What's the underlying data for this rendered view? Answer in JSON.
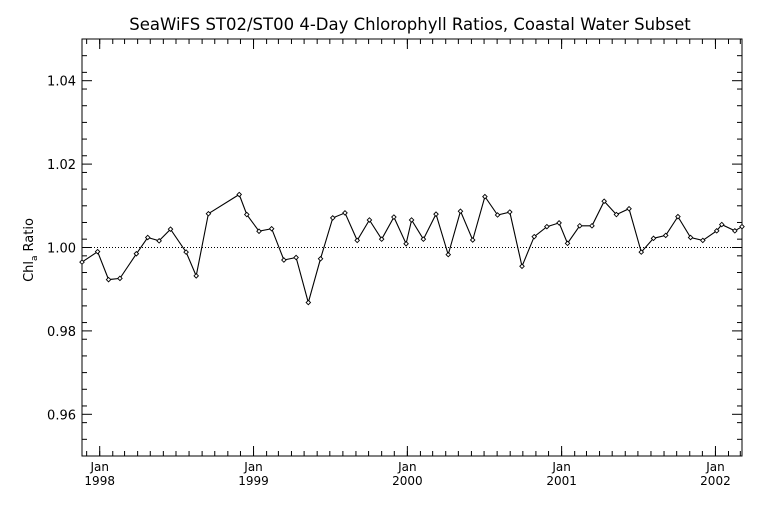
{
  "chart_data": {
    "type": "line",
    "title": "SeaWiFS ST02/ST00 4-Day Chlorophyll Ratios, Coastal Water Subset",
    "ylabel": "Chl",
    "ylabel_sub": "a",
    "ylabel_suffix": "Ratio",
    "xlabel": "",
    "ylim": [
      0.95,
      1.05
    ],
    "xlim": [
      "1997-11-20",
      "2002-03-05"
    ],
    "yticks": [
      0.96,
      0.98,
      1.0,
      1.02,
      1.04
    ],
    "ytick_labels": [
      "0.96",
      "0.98",
      "1.00",
      "1.02",
      "1.04"
    ],
    "xticks": [
      {
        "date": "1998-01-01",
        "month": "Jan",
        "year": "1998"
      },
      {
        "date": "1999-01-01",
        "month": "Jan",
        "year": "1999"
      },
      {
        "date": "2000-01-01",
        "month": "Jan",
        "year": "2000"
      },
      {
        "date": "2001-01-01",
        "month": "Jan",
        "year": "2001"
      },
      {
        "date": "2002-01-01",
        "month": "Jan",
        "year": "2002"
      }
    ],
    "reference_line": 1.0,
    "colors": {
      "line": "#000000",
      "axis": "#000000",
      "reference": "#000000"
    },
    "grid": false,
    "x": [
      "1997-11-20",
      "1997-12-27",
      "1998-01-22",
      "1998-02-18",
      "1998-03-29",
      "1998-04-25",
      "1998-05-22",
      "1998-06-18",
      "1998-07-25",
      "1998-08-18",
      "1998-09-16",
      "1998-11-28",
      "1998-12-16",
      "1999-01-14",
      "1999-02-13",
      "1999-03-14",
      "1999-04-12",
      "1999-05-11",
      "1999-06-09",
      "1999-07-08",
      "1999-08-06",
      "1999-09-04",
      "1999-10-03",
      "1999-11-01",
      "1999-11-30",
      "1999-12-29",
      "2000-01-11",
      "2000-02-08",
      "2000-03-09",
      "2000-04-07",
      "2000-05-06",
      "2000-06-04",
      "2000-07-03",
      "2000-08-02",
      "2000-08-31",
      "2000-09-29",
      "2000-10-28",
      "2000-11-27",
      "2000-12-26",
      "2001-01-15",
      "2001-02-13",
      "2001-03-14",
      "2001-04-12",
      "2001-05-11",
      "2001-06-10",
      "2001-07-09",
      "2001-08-07",
      "2001-09-05",
      "2001-10-04",
      "2001-11-03",
      "2001-12-02",
      "2002-01-04",
      "2002-01-16",
      "2002-02-16",
      "2002-03-05"
    ],
    "series": [
      {
        "values": [
          0.9965,
          0.999,
          0.9923,
          0.9926,
          0.9985,
          1.0024,
          1.0016,
          1.0044,
          0.9989,
          0.9932,
          1.0081,
          1.0127,
          1.0079,
          1.0039,
          1.0045,
          0.997,
          0.9976,
          0.9868,
          0.9973,
          1.0071,
          1.0083,
          1.0017,
          1.0066,
          1.002,
          1.0073,
          1.0009,
          1.0066,
          1.002,
          1.008,
          0.9983,
          1.0087,
          1.0018,
          1.0122,
          1.0078,
          1.0085,
          0.9955,
          1.0026,
          1.005,
          1.0059,
          1.001,
          1.0052,
          1.0052,
          1.0111,
          1.0079,
          1.0093,
          0.9989,
          1.0022,
          1.0029,
          1.0074,
          1.0024,
          1.0017,
          1.004,
          1.0055,
          1.004,
          1.005
        ]
      }
    ]
  }
}
